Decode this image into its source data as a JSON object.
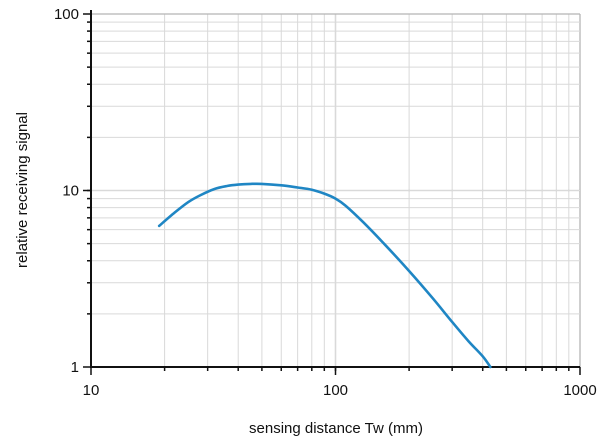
{
  "chart_data": {
    "type": "line",
    "title": "",
    "xlabel": "sensing distance Tw (mm)",
    "ylabel": "relative receiving signal",
    "x_scale": "log",
    "y_scale": "log",
    "xlim": [
      10,
      1000
    ],
    "ylim": [
      1,
      100
    ],
    "grid": true,
    "x_ticks": [
      {
        "value": 10,
        "label": "10"
      },
      {
        "value": 100,
        "label": "100"
      },
      {
        "value": 1000,
        "label": "1000"
      }
    ],
    "y_ticks": [
      {
        "value": 1,
        "label": "1"
      },
      {
        "value": 10,
        "label": "10"
      },
      {
        "value": 100,
        "label": "100"
      }
    ],
    "series": [
      {
        "color": "#1f86c4",
        "x": [
          19,
          22,
          25,
          28,
          32,
          36,
          40,
          45,
          50,
          60,
          70,
          80,
          90,
          100,
          110,
          130,
          160,
          200,
          250,
          300,
          350,
          400,
          430
        ],
        "y": [
          6.3,
          7.5,
          8.6,
          9.4,
          10.2,
          10.6,
          10.8,
          10.9,
          10.9,
          10.7,
          10.4,
          10.1,
          9.6,
          9.0,
          8.2,
          6.6,
          4.9,
          3.5,
          2.45,
          1.8,
          1.4,
          1.15,
          1.0
        ]
      }
    ]
  }
}
